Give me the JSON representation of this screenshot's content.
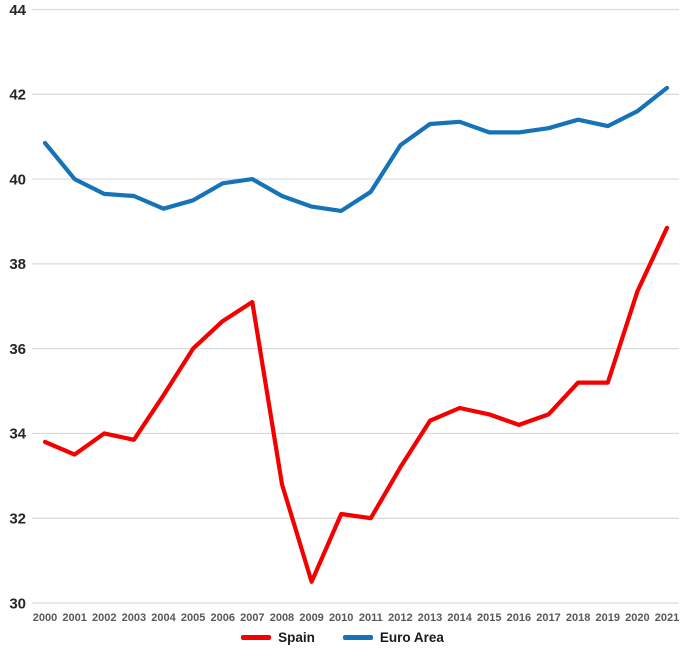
{
  "chart_data": {
    "type": "line",
    "title": "",
    "xlabel": "",
    "ylabel": "",
    "x_labels": [
      "2000",
      "2001",
      "2002",
      "2003",
      "2004",
      "2005",
      "2006",
      "2007",
      "2008",
      "2009",
      "2010",
      "2011",
      "2012",
      "2013",
      "2014",
      "2015",
      "2016",
      "2017",
      "2018",
      "2019",
      "2020",
      "2021"
    ],
    "series": [
      {
        "name": "Spain",
        "color": "#f40000",
        "values": [
          33.8,
          33.5,
          34.0,
          33.85,
          34.9,
          36.0,
          36.65,
          37.1,
          32.8,
          30.5,
          32.1,
          32.0,
          33.2,
          34.3,
          34.6,
          34.45,
          34.2,
          34.45,
          35.2,
          35.2,
          37.35,
          38.85
        ]
      },
      {
        "name": "Euro Area",
        "color": "#1673b8",
        "values": [
          40.85,
          40.0,
          39.65,
          39.6,
          39.3,
          39.5,
          39.9,
          40.0,
          39.6,
          39.35,
          39.25,
          39.7,
          40.8,
          41.3,
          41.35,
          41.1,
          41.1,
          41.2,
          41.4,
          41.25,
          41.6,
          42.15
        ]
      }
    ],
    "ylim": [
      30,
      44
    ],
    "y_ticks": [
      30,
      32,
      34,
      36,
      38,
      40,
      42,
      44
    ],
    "grid": true,
    "legend_position": "bottom"
  },
  "style": {
    "grid_color": "#d9d9d9",
    "y_label_color": "#262626",
    "x_label_color": "#595959",
    "background": "#ffffff"
  }
}
